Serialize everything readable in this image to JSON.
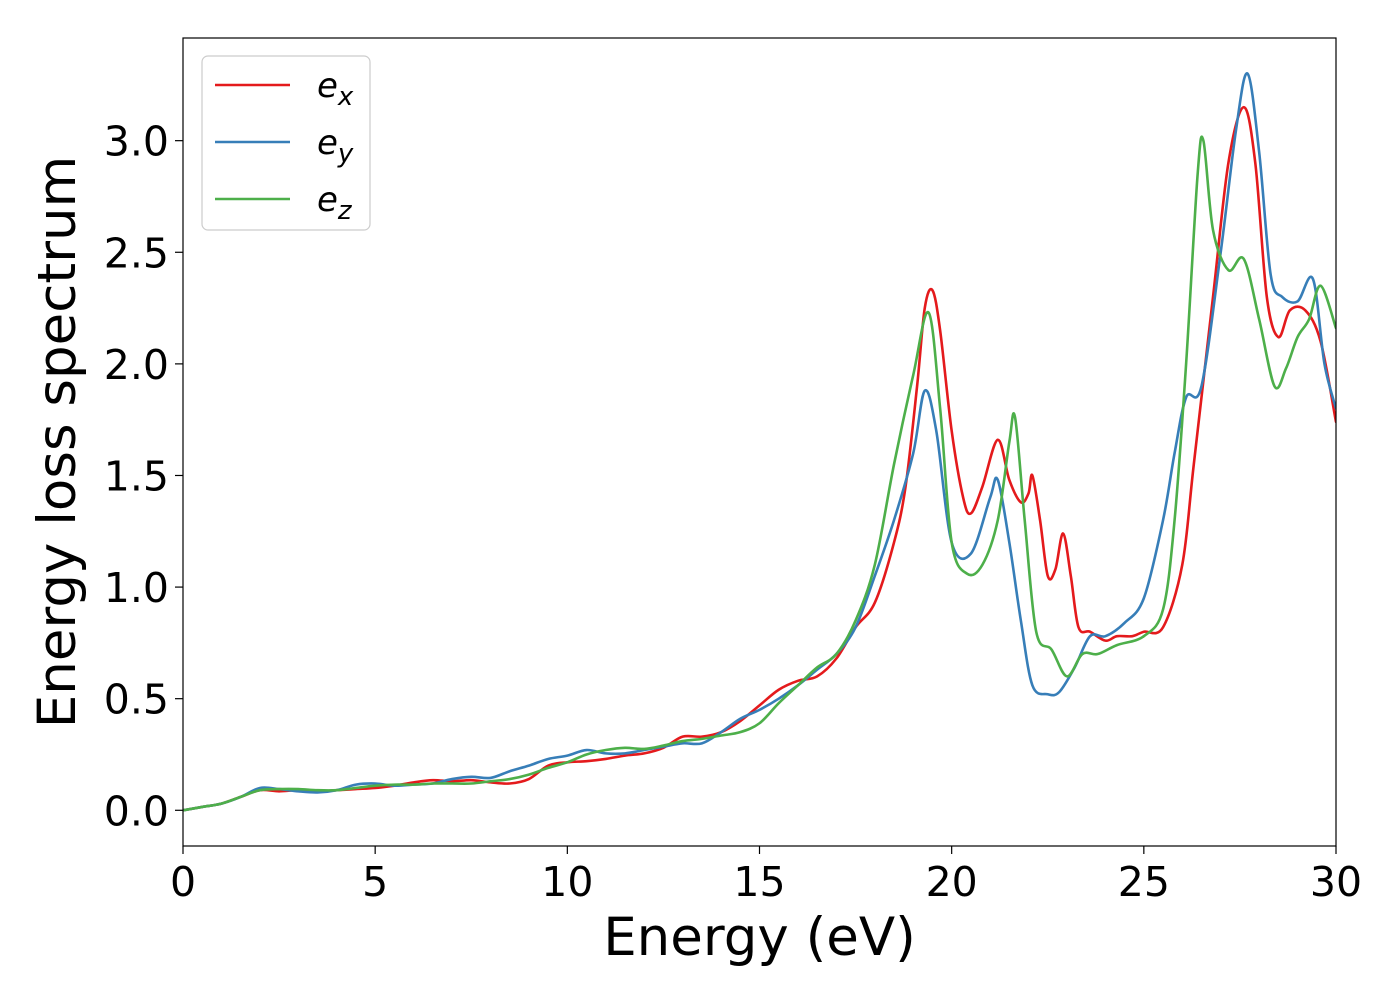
{
  "chart_data": {
    "type": "line",
    "title": "",
    "xlabel": "Energy (eV)",
    "ylabel": "Energy loss spectrum",
    "xlim": [
      0,
      30
    ],
    "ylim": [
      -0.16,
      3.46
    ],
    "xticks": [
      0,
      5,
      10,
      15,
      20,
      25,
      30
    ],
    "xtick_labels": [
      "0",
      "5",
      "10",
      "15",
      "20",
      "25",
      "30"
    ],
    "yticks": [
      0.0,
      0.5,
      1.0,
      1.5,
      2.0,
      2.5,
      3.0
    ],
    "ytick_labels": [
      "0.0",
      "0.5",
      "1.0",
      "1.5",
      "2.0",
      "2.5",
      "3.0"
    ],
    "grid": false,
    "legend_position": "top-left",
    "series": [
      {
        "name": "e",
        "subscript": "x",
        "color": "#e41a1c",
        "points": [
          [
            0,
            0
          ],
          [
            0.5,
            0.015
          ],
          [
            1,
            0.03
          ],
          [
            1.5,
            0.06
          ],
          [
            2,
            0.09
          ],
          [
            2.5,
            0.085
          ],
          [
            3,
            0.09
          ],
          [
            3.5,
            0.085
          ],
          [
            4,
            0.09
          ],
          [
            4.5,
            0.095
          ],
          [
            5,
            0.1
          ],
          [
            5.5,
            0.11
          ],
          [
            6,
            0.125
          ],
          [
            6.5,
            0.135
          ],
          [
            7,
            0.13
          ],
          [
            7.5,
            0.135
          ],
          [
            8,
            0.125
          ],
          [
            8.5,
            0.12
          ],
          [
            9,
            0.14
          ],
          [
            9.5,
            0.2
          ],
          [
            10,
            0.215
          ],
          [
            10.5,
            0.22
          ],
          [
            11,
            0.23
          ],
          [
            11.5,
            0.245
          ],
          [
            12,
            0.255
          ],
          [
            12.5,
            0.28
          ],
          [
            13,
            0.33
          ],
          [
            13.5,
            0.33
          ],
          [
            14,
            0.35
          ],
          [
            14.5,
            0.4
          ],
          [
            15,
            0.47
          ],
          [
            15.5,
            0.54
          ],
          [
            16,
            0.58
          ],
          [
            16.5,
            0.6
          ],
          [
            17,
            0.68
          ],
          [
            17.5,
            0.82
          ],
          [
            18,
            0.93
          ],
          [
            18.5,
            1.2
          ],
          [
            18.8,
            1.45
          ],
          [
            19.1,
            1.9
          ],
          [
            19.3,
            2.25
          ],
          [
            19.5,
            2.33
          ],
          [
            19.7,
            2.15
          ],
          [
            20,
            1.7
          ],
          [
            20.3,
            1.4
          ],
          [
            20.5,
            1.33
          ],
          [
            20.8,
            1.45
          ],
          [
            21.2,
            1.66
          ],
          [
            21.5,
            1.48
          ],
          [
            21.8,
            1.38
          ],
          [
            22,
            1.42
          ],
          [
            22.1,
            1.5
          ],
          [
            22.3,
            1.3
          ],
          [
            22.5,
            1.05
          ],
          [
            22.7,
            1.08
          ],
          [
            22.9,
            1.24
          ],
          [
            23.1,
            1.05
          ],
          [
            23.3,
            0.82
          ],
          [
            23.6,
            0.8
          ],
          [
            24,
            0.76
          ],
          [
            24.3,
            0.78
          ],
          [
            24.7,
            0.78
          ],
          [
            25,
            0.8
          ],
          [
            25.5,
            0.82
          ],
          [
            26,
            1.1
          ],
          [
            26.3,
            1.55
          ],
          [
            26.8,
            2.3
          ],
          [
            27.2,
            2.9
          ],
          [
            27.6,
            3.15
          ],
          [
            27.9,
            2.9
          ],
          [
            28.2,
            2.3
          ],
          [
            28.5,
            2.12
          ],
          [
            28.8,
            2.24
          ],
          [
            29.2,
            2.24
          ],
          [
            29.6,
            2.1
          ],
          [
            30,
            1.74
          ]
        ]
      },
      {
        "name": "e",
        "subscript": "y",
        "color": "#377eb8",
        "points": [
          [
            0,
            0
          ],
          [
            0.5,
            0.015
          ],
          [
            1,
            0.03
          ],
          [
            1.5,
            0.06
          ],
          [
            2,
            0.1
          ],
          [
            2.5,
            0.095
          ],
          [
            3,
            0.085
          ],
          [
            3.5,
            0.08
          ],
          [
            4,
            0.09
          ],
          [
            4.5,
            0.115
          ],
          [
            5,
            0.12
          ],
          [
            5.5,
            0.11
          ],
          [
            6,
            0.115
          ],
          [
            6.5,
            0.12
          ],
          [
            7,
            0.14
          ],
          [
            7.5,
            0.15
          ],
          [
            8,
            0.145
          ],
          [
            8.5,
            0.175
          ],
          [
            9,
            0.2
          ],
          [
            9.5,
            0.23
          ],
          [
            10,
            0.245
          ],
          [
            10.5,
            0.27
          ],
          [
            11,
            0.255
          ],
          [
            11.5,
            0.255
          ],
          [
            12,
            0.27
          ],
          [
            12.5,
            0.285
          ],
          [
            13,
            0.3
          ],
          [
            13.5,
            0.3
          ],
          [
            14,
            0.35
          ],
          [
            14.5,
            0.41
          ],
          [
            15,
            0.45
          ],
          [
            15.5,
            0.5
          ],
          [
            16,
            0.56
          ],
          [
            16.5,
            0.63
          ],
          [
            17,
            0.7
          ],
          [
            17.5,
            0.82
          ],
          [
            18,
            1.05
          ],
          [
            18.5,
            1.3
          ],
          [
            19,
            1.6
          ],
          [
            19.3,
            1.88
          ],
          [
            19.6,
            1.7
          ],
          [
            20,
            1.2
          ],
          [
            20.5,
            1.15
          ],
          [
            21,
            1.4
          ],
          [
            21.2,
            1.48
          ],
          [
            21.5,
            1.2
          ],
          [
            21.8,
            0.85
          ],
          [
            22.1,
            0.56
          ],
          [
            22.5,
            0.52
          ],
          [
            22.8,
            0.53
          ],
          [
            23.2,
            0.64
          ],
          [
            23.6,
            0.78
          ],
          [
            24,
            0.78
          ],
          [
            24.5,
            0.84
          ],
          [
            25,
            0.95
          ],
          [
            25.5,
            1.3
          ],
          [
            25.8,
            1.6
          ],
          [
            26.1,
            1.85
          ],
          [
            26.5,
            1.9
          ],
          [
            27,
            2.5
          ],
          [
            27.4,
            3.05
          ],
          [
            27.7,
            3.3
          ],
          [
            28,
            2.95
          ],
          [
            28.3,
            2.4
          ],
          [
            28.6,
            2.3
          ],
          [
            29,
            2.28
          ],
          [
            29.4,
            2.38
          ],
          [
            29.7,
            2.0
          ],
          [
            30,
            1.8
          ]
        ]
      },
      {
        "name": "e",
        "subscript": "z",
        "color": "#4daf4a",
        "points": [
          [
            0,
            0
          ],
          [
            0.5,
            0.015
          ],
          [
            1,
            0.03
          ],
          [
            1.5,
            0.06
          ],
          [
            2,
            0.09
          ],
          [
            2.5,
            0.095
          ],
          [
            3,
            0.095
          ],
          [
            3.5,
            0.09
          ],
          [
            4,
            0.09
          ],
          [
            4.5,
            0.1
          ],
          [
            5,
            0.11
          ],
          [
            5.5,
            0.115
          ],
          [
            6,
            0.115
          ],
          [
            6.5,
            0.12
          ],
          [
            7,
            0.12
          ],
          [
            7.5,
            0.12
          ],
          [
            8,
            0.13
          ],
          [
            8.5,
            0.14
          ],
          [
            9,
            0.16
          ],
          [
            9.5,
            0.19
          ],
          [
            10,
            0.215
          ],
          [
            10.5,
            0.25
          ],
          [
            11,
            0.27
          ],
          [
            11.5,
            0.28
          ],
          [
            12,
            0.275
          ],
          [
            12.5,
            0.29
          ],
          [
            13,
            0.31
          ],
          [
            13.5,
            0.32
          ],
          [
            14,
            0.335
          ],
          [
            14.5,
            0.35
          ],
          [
            15,
            0.39
          ],
          [
            15.5,
            0.48
          ],
          [
            16,
            0.56
          ],
          [
            16.5,
            0.64
          ],
          [
            17,
            0.7
          ],
          [
            17.5,
            0.85
          ],
          [
            18,
            1.1
          ],
          [
            18.5,
            1.55
          ],
          [
            19,
            1.95
          ],
          [
            19.4,
            2.23
          ],
          [
            19.7,
            1.8
          ],
          [
            20,
            1.2
          ],
          [
            20.4,
            1.06
          ],
          [
            20.8,
            1.1
          ],
          [
            21.2,
            1.3
          ],
          [
            21.5,
            1.65
          ],
          [
            21.65,
            1.76
          ],
          [
            21.9,
            1.3
          ],
          [
            22.2,
            0.8
          ],
          [
            22.6,
            0.72
          ],
          [
            23,
            0.6
          ],
          [
            23.4,
            0.7
          ],
          [
            23.8,
            0.7
          ],
          [
            24.3,
            0.74
          ],
          [
            25,
            0.78
          ],
          [
            25.5,
            0.9
          ],
          [
            25.8,
            1.3
          ],
          [
            26.1,
            2.0
          ],
          [
            26.4,
            2.85
          ],
          [
            26.55,
            3.0
          ],
          [
            26.8,
            2.6
          ],
          [
            27.2,
            2.42
          ],
          [
            27.6,
            2.47
          ],
          [
            28,
            2.2
          ],
          [
            28.4,
            1.9
          ],
          [
            28.7,
            1.98
          ],
          [
            29,
            2.12
          ],
          [
            29.3,
            2.2
          ],
          [
            29.6,
            2.35
          ],
          [
            30,
            2.16
          ]
        ]
      }
    ]
  }
}
